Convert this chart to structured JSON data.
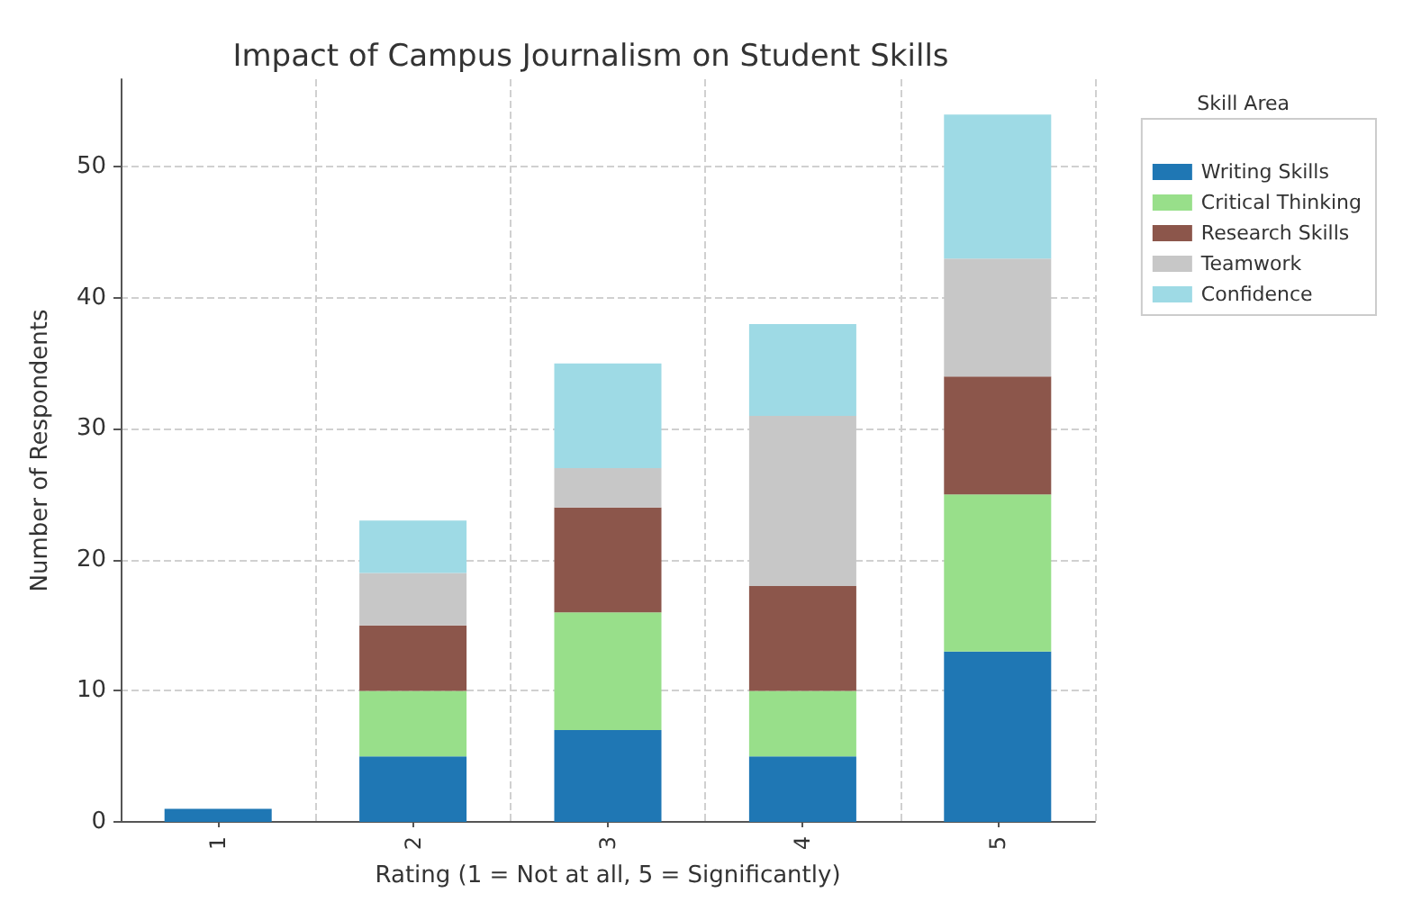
{
  "chart_data": {
    "type": "bar",
    "stacked": true,
    "title": "Impact of Campus Journalism on Student Skills",
    "xlabel": "Rating (1 = Not at all, 5 = Significantly)",
    "ylabel": "Number of Respondents",
    "legend_title": "Skill Area",
    "categories": [
      "1",
      "2",
      "3",
      "4",
      "5"
    ],
    "series": [
      {
        "name": "Writing Skills",
        "color": "#1f77b4",
        "values": [
          1,
          5,
          7,
          5,
          13
        ]
      },
      {
        "name": "Critical Thinking",
        "color": "#98df8a",
        "values": [
          0,
          5,
          9,
          5,
          12
        ]
      },
      {
        "name": "Research Skills",
        "color": "#8c564b",
        "values": [
          0,
          5,
          8,
          8,
          9
        ]
      },
      {
        "name": "Teamwork",
        "color": "#c7c7c7",
        "values": [
          0,
          4,
          3,
          13,
          9
        ]
      },
      {
        "name": "Confidence",
        "color": "#9edae5",
        "values": [
          0,
          4,
          8,
          7,
          11
        ]
      }
    ],
    "ylim": [
      0,
      56.7
    ],
    "yticks": [
      0,
      10,
      20,
      30,
      40,
      50
    ],
    "grid": true,
    "legend": "top right"
  }
}
